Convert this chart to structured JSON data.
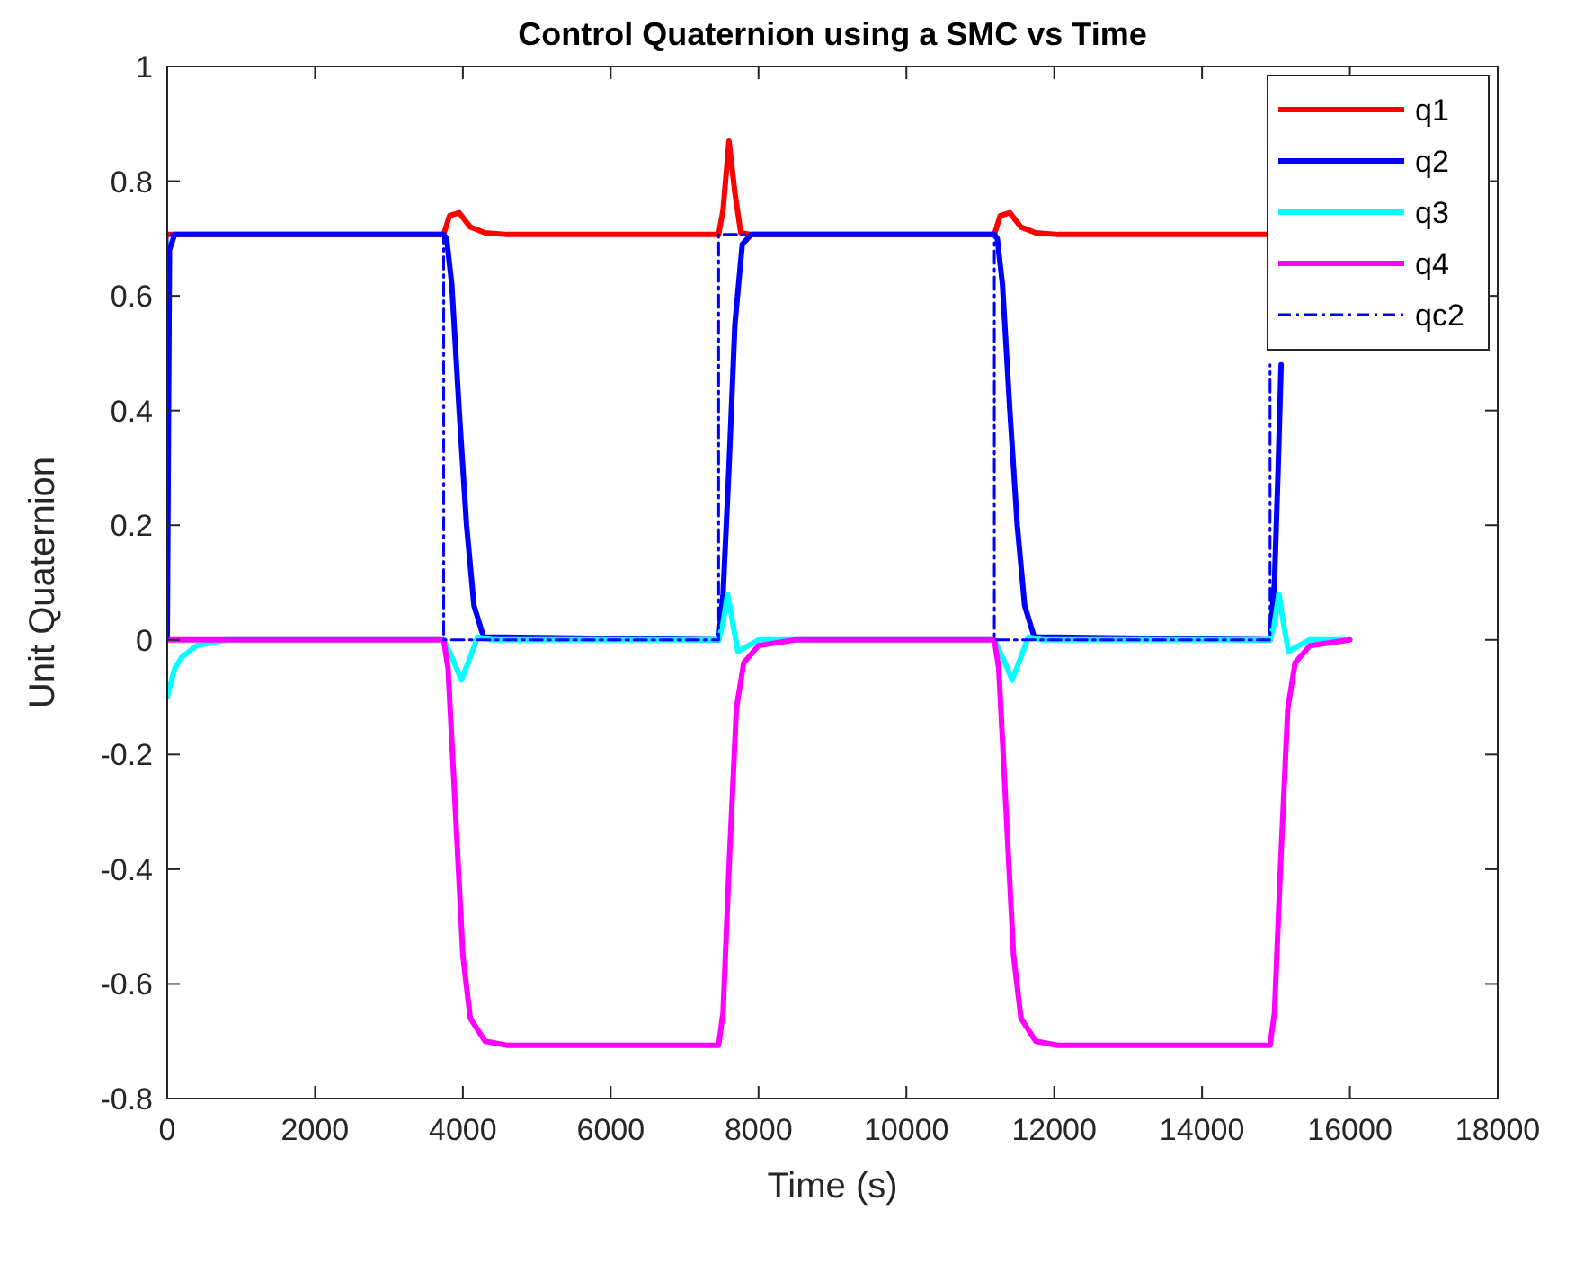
{
  "chart_data": {
    "type": "line",
    "title": "Control Quaternion using a SMC vs Time",
    "xlabel": "Time (s)",
    "ylabel": "Unit Quaternion",
    "xlim": [
      0,
      18000
    ],
    "xticks": [
      0,
      2000,
      4000,
      6000,
      8000,
      10000,
      12000,
      14000,
      16000,
      18000
    ],
    "ylim": [
      -0.8,
      1
    ],
    "yticks": [
      -0.8,
      -0.6,
      -0.4,
      -0.2,
      0,
      0.2,
      0.4,
      0.6,
      0.8,
      1
    ],
    "grid": false,
    "legend": "top right",
    "series": [
      {
        "name": "q1",
        "color": "#ff0000",
        "line_style": "solid",
        "x": [
          0,
          3740,
          3820,
          3950,
          4100,
          4300,
          4600,
          7460,
          7520,
          7600,
          7680,
          7760,
          7900,
          11190,
          11270,
          11400,
          11550,
          11750,
          12050,
          14880
        ],
        "values": [
          0.707,
          0.707,
          0.74,
          0.745,
          0.72,
          0.71,
          0.707,
          0.707,
          0.75,
          0.87,
          0.78,
          0.71,
          0.707,
          0.707,
          0.74,
          0.745,
          0.72,
          0.71,
          0.707,
          0.707
        ]
      },
      {
        "name": "q2",
        "color": "#0000ff",
        "line_style": "solid",
        "x": [
          0,
          30,
          100,
          3740,
          3780,
          3850,
          3950,
          4050,
          4150,
          4280,
          7460,
          7520,
          7600,
          7680,
          7780,
          7900,
          11190,
          11230,
          11300,
          11400,
          11500,
          11600,
          11730,
          14920,
          14980,
          15030,
          15070
        ],
        "values": [
          0,
          0.68,
          0.707,
          0.707,
          0.7,
          0.62,
          0.4,
          0.2,
          0.06,
          0.005,
          0,
          0.08,
          0.3,
          0.55,
          0.69,
          0.707,
          0.707,
          0.7,
          0.62,
          0.4,
          0.2,
          0.06,
          0.005,
          0,
          0.1,
          0.3,
          0.48
        ]
      },
      {
        "name": "q3",
        "color": "#00ffff",
        "line_style": "solid",
        "x": [
          0,
          100,
          200,
          400,
          800,
          3740,
          3850,
          3980,
          4100,
          4200,
          4400,
          7460,
          7520,
          7580,
          7650,
          7720,
          8000,
          11190,
          11300,
          11430,
          11550,
          11650,
          11850,
          14920,
          14980,
          15040,
          15100,
          15170,
          15450,
          16000
        ],
        "values": [
          -0.1,
          -0.05,
          -0.03,
          -0.01,
          0,
          0,
          -0.03,
          -0.07,
          -0.03,
          0.005,
          0,
          0,
          0.03,
          0.08,
          0.03,
          -0.02,
          0,
          0,
          -0.03,
          -0.07,
          -0.03,
          0.005,
          0,
          0,
          0.03,
          0.08,
          0.03,
          -0.02,
          0,
          0
        ]
      },
      {
        "name": "q4",
        "color": "#ff00ff",
        "line_style": "solid",
        "x": [
          0,
          3740,
          3800,
          3900,
          4000,
          4100,
          4300,
          4600,
          7460,
          7520,
          7600,
          7700,
          7800,
          8000,
          8500,
          11190,
          11250,
          11350,
          11450,
          11550,
          11750,
          12050,
          14920,
          14980,
          15060,
          15160,
          15260,
          15460,
          16000
        ],
        "values": [
          0,
          0,
          -0.05,
          -0.3,
          -0.55,
          -0.66,
          -0.7,
          -0.707,
          -0.707,
          -0.65,
          -0.4,
          -0.12,
          -0.04,
          -0.01,
          0,
          0,
          -0.05,
          -0.3,
          -0.55,
          -0.66,
          -0.7,
          -0.707,
          -0.707,
          -0.65,
          -0.4,
          -0.12,
          -0.04,
          -0.01,
          0
        ]
      },
      {
        "name": "qc2",
        "color": "#0000ff",
        "line_style": "dashed",
        "x": [
          0,
          0,
          3740,
          3740,
          7460,
          7460,
          11190,
          11190,
          14920,
          14920
        ],
        "values": [
          0,
          0.707,
          0.707,
          0,
          0,
          0.707,
          0.707,
          0,
          0,
          0.48
        ]
      }
    ]
  }
}
